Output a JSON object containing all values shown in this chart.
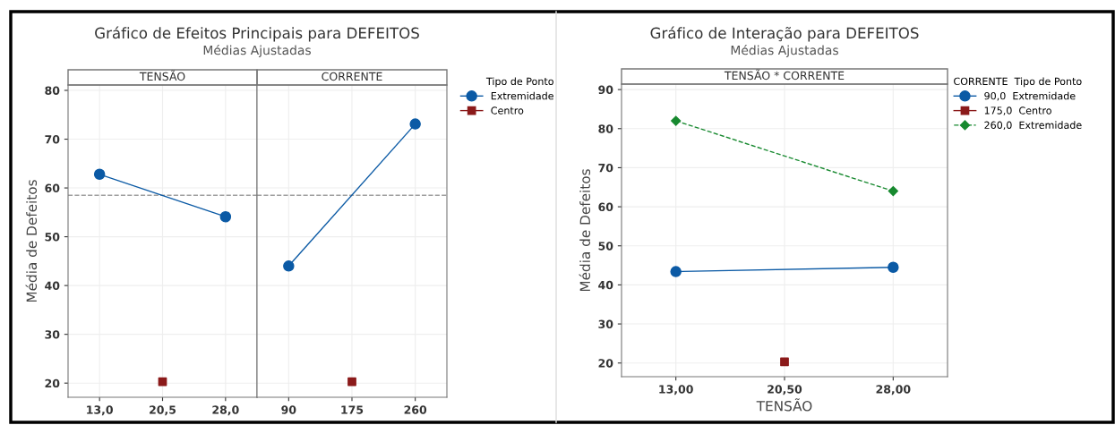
{
  "chart_data": [
    {
      "type": "line",
      "title": "Gráfico de Efeitos Principais para DEFEITOS",
      "subtitle": "Médias Ajustadas",
      "ylabel": "Média de Defeitos",
      "annotations": [
        "TENSÃO"
      ],
      "categories": [
        "13,0",
        "20,5",
        "28,0"
      ],
      "ylim": [
        17.1,
        81.1
      ],
      "yticks": [
        20,
        30,
        40,
        50,
        60,
        70,
        80
      ],
      "grid": true,
      "legend": "right",
      "legend_title": "Tipo de Ponto",
      "series": [
        {
          "name": "Extremidade",
          "color": "#0b5aa5",
          "marker": "circle",
          "line_style": "solid",
          "values": [
            62.8,
            null,
            54.1
          ]
        },
        {
          "name": "Centro",
          "type": "scatter",
          "color": "#8b1a1a",
          "marker": "square",
          "values": [
            null,
            20.3,
            null
          ]
        }
      ],
      "ref_lines": [
        {
          "axis": "y",
          "value": 58.5,
          "color": "#a0a0a0",
          "line_style": "dashed"
        }
      ]
    },
    {
      "type": "line",
      "annotations": [
        "CORRENTE"
      ],
      "categories": [
        "90",
        "175",
        "260"
      ],
      "ylim": [
        17.1,
        81.1
      ],
      "yticks": [
        20,
        30,
        40,
        50,
        60,
        70,
        80
      ],
      "grid": true,
      "tick_labels": "x",
      "series": [
        {
          "color": "#0b5aa5",
          "marker": "circle",
          "line_style": "solid",
          "values": [
            44.0,
            null,
            73.1
          ]
        },
        {
          "type": "scatter",
          "color": "#8b1a1a",
          "marker": "square",
          "values": [
            null,
            20.3,
            null
          ]
        }
      ],
      "ref_lines": [
        {
          "axis": "y",
          "value": 58.5,
          "color": "#a0a0a0",
          "line_style": "dashed"
        }
      ]
    },
    {
      "type": "line",
      "title": "Gráfico de Interação para DEFEITOS",
      "subtitle": "Médias Ajustadas",
      "ylabel": "Média de Defeitos",
      "xlabel": "TENSÃO",
      "annotations": [
        "TENSÃO * CORRENTE"
      ],
      "categories": [
        "13,00",
        "20,50",
        "28,00"
      ],
      "ylim": [
        16.5,
        91.4
      ],
      "yticks": [
        20,
        30,
        40,
        50,
        60,
        70,
        80,
        90
      ],
      "grid": true,
      "legend": "right",
      "legend_title": "CORRENTE  Tipo de Ponto",
      "series": [
        {
          "name": "90,0  Extremidade",
          "color": "#0b5aa5",
          "marker": "circle",
          "line_style": "solid",
          "values": [
            43.4,
            null,
            44.5
          ]
        },
        {
          "name": "175,0  Centro",
          "type": "scatter",
          "color": "#8b1a1a",
          "marker": "square",
          "values": [
            null,
            20.3,
            null
          ]
        },
        {
          "name": "260,0  Extremidade",
          "color": "#17892f",
          "marker": "diamond",
          "line_style": "dashed",
          "values": [
            82.0,
            null,
            64.0
          ]
        }
      ]
    }
  ]
}
